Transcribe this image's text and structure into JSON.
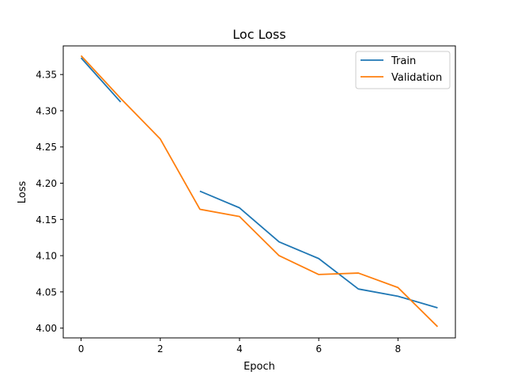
{
  "chart_data": {
    "type": "line",
    "title": "Loc Loss",
    "xlabel": "Epoch",
    "ylabel": "Loss",
    "xlim": [
      -0.45,
      9.45
    ],
    "ylim": [
      3.9865,
      4.3895
    ],
    "x_ticks": [
      0,
      2,
      4,
      6,
      8
    ],
    "x_tick_labels": [
      "0",
      "2",
      "4",
      "6",
      "8"
    ],
    "y_ticks": [
      4.0,
      4.05,
      4.1,
      4.15,
      4.2,
      4.25,
      4.3,
      4.35
    ],
    "y_tick_labels": [
      "4.00",
      "4.05",
      "4.10",
      "4.15",
      "4.20",
      "4.25",
      "4.30",
      "4.35"
    ],
    "grid": false,
    "legend_position": "upper right",
    "series": [
      {
        "name": "Train",
        "color": "#1f77b4",
        "points": [
          [
            0,
            4.373
          ],
          [
            1,
            4.312
          ],
          [
            3,
            4.189
          ],
          [
            4,
            4.166
          ],
          [
            5,
            4.119
          ],
          [
            6,
            4.096
          ],
          [
            7,
            4.054
          ],
          [
            8,
            4.044
          ],
          [
            9,
            4.028
          ]
        ],
        "segments": [
          [
            0,
            1
          ],
          [
            2,
            3,
            4,
            5,
            6,
            7,
            8
          ]
        ]
      },
      {
        "name": "Validation",
        "color": "#ff7f0e",
        "points": [
          [
            0,
            4.376
          ],
          [
            1,
            4.317
          ],
          [
            2,
            4.261
          ],
          [
            3,
            4.164
          ],
          [
            4,
            4.154
          ],
          [
            5,
            4.1
          ],
          [
            6,
            4.074
          ],
          [
            7,
            4.076
          ],
          [
            8,
            4.056
          ],
          [
            9,
            4.002
          ]
        ],
        "segments": [
          [
            0,
            1,
            2,
            3,
            4,
            5,
            6,
            7,
            8,
            9
          ]
        ]
      }
    ]
  }
}
